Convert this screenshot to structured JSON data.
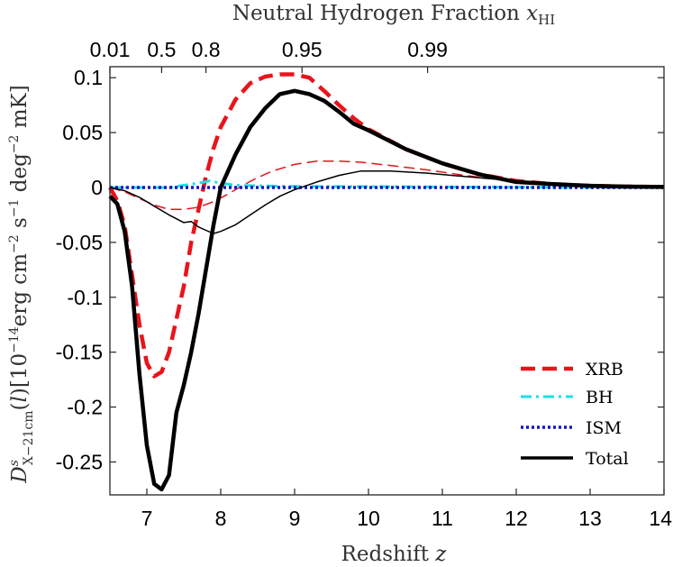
{
  "chart_data": {
    "type": "line",
    "top_axis": {
      "title_text": "Neutral Hydrogen Fraction ",
      "title_math": "x",
      "title_sub": "HI",
      "ticks": [
        {
          "z": 6.5,
          "label": "0.01"
        },
        {
          "z": 7.2,
          "label": "0.5"
        },
        {
          "z": 7.8,
          "label": "0.8"
        },
        {
          "z": 9.1,
          "label": "0.95"
        },
        {
          "z": 10.8,
          "label": "0.99"
        }
      ]
    },
    "xlabel_text": "Redshift ",
    "xlabel_math": "z",
    "ylabel_text": "D^s_X−21cm(l)[10^−14 erg cm^−2 s^−1 deg^−2 mK]",
    "xlim": [
      6.5,
      14
    ],
    "ylim": [
      -0.28,
      0.11
    ],
    "xticks": [
      7,
      8,
      9,
      10,
      11,
      12,
      13,
      14
    ],
    "xtick_labels": [
      "7",
      "8",
      "9",
      "10",
      "11",
      "12",
      "13",
      "14"
    ],
    "yticks": [
      0.1,
      0.05,
      0,
      -0.05,
      -0.1,
      -0.15,
      -0.2,
      -0.25
    ],
    "ytick_labels": [
      "0.1",
      "0.05",
      "0",
      "-0.05",
      "-0.1",
      "-0.15",
      "-0.2",
      "-0.25"
    ],
    "legend_position": "bottom-right",
    "series": [
      {
        "name": "XRB",
        "color": "#e8141b",
        "dash": "16,8",
        "width": 4.5,
        "x": [
          6.5,
          6.6,
          6.7,
          6.8,
          6.9,
          7.0,
          7.1,
          7.2,
          7.3,
          7.4,
          7.5,
          7.6,
          7.7,
          7.8,
          7.9,
          8.0,
          8.2,
          8.4,
          8.6,
          8.8,
          9.0,
          9.2,
          9.4,
          9.6,
          9.8,
          10.0,
          10.5,
          11.0,
          11.5,
          12.0,
          12.5,
          13.0,
          13.5,
          14.0
        ],
        "y": [
          0.0,
          -0.012,
          -0.035,
          -0.08,
          -0.125,
          -0.16,
          -0.172,
          -0.168,
          -0.15,
          -0.12,
          -0.09,
          -0.05,
          -0.02,
          0.01,
          0.035,
          0.055,
          0.08,
          0.095,
          0.101,
          0.103,
          0.103,
          0.1,
          0.088,
          0.075,
          0.063,
          0.053,
          0.035,
          0.022,
          0.012,
          0.006,
          0.003,
          0.0015,
          0.0008,
          0.0005
        ]
      },
      {
        "name": "",
        "color": "#e8141b",
        "dash": "12,6",
        "width": 1.5,
        "x": [
          6.5,
          6.7,
          6.9,
          7.1,
          7.3,
          7.5,
          7.7,
          7.9,
          8.1,
          8.3,
          8.5,
          8.7,
          9.0,
          9.3,
          9.6,
          9.9,
          10.3,
          10.8,
          11.3,
          11.8,
          12.3,
          13.0,
          14.0
        ],
        "y": [
          0.0,
          -0.004,
          -0.01,
          -0.016,
          -0.02,
          -0.02,
          -0.018,
          -0.013,
          -0.006,
          0.002,
          0.009,
          0.015,
          0.021,
          0.024,
          0.024,
          0.023,
          0.02,
          0.016,
          0.011,
          0.007,
          0.004,
          0.002,
          0.0005
        ]
      },
      {
        "name": "BH",
        "color": "#19e0e8",
        "dash": "12,5,3,5",
        "width": 3,
        "x": [
          6.5,
          7.0,
          7.3,
          7.5,
          7.7,
          7.85,
          8.0,
          8.2,
          8.5,
          9.0,
          10.0,
          11.0,
          12.0,
          13.0,
          14.0
        ],
        "y": [
          0.0,
          0.0,
          0.0,
          0.002,
          0.004,
          0.006,
          0.004,
          0.002,
          0.0015,
          0.001,
          0.0008,
          0.0005,
          0.0003,
          0.0001,
          0.0
        ]
      },
      {
        "name": "ISM",
        "color": "#1414c8",
        "dash": "3,3",
        "width": 3.5,
        "x": [
          6.5,
          7.0,
          8.0,
          9.0,
          10.0,
          11.0,
          12.0,
          13.0,
          14.0
        ],
        "y": [
          0.0,
          0.0,
          0.0,
          0.0,
          0.0,
          0.0,
          0.0,
          0.0,
          0.0
        ]
      },
      {
        "name": "Total",
        "color": "#000000",
        "dash": "",
        "width": 4.5,
        "x": [
          6.5,
          6.6,
          6.7,
          6.8,
          6.9,
          7.0,
          7.1,
          7.2,
          7.3,
          7.4,
          7.5,
          7.6,
          7.7,
          7.8,
          7.9,
          8.0,
          8.2,
          8.4,
          8.6,
          8.8,
          9.0,
          9.2,
          9.4,
          9.6,
          9.8,
          10.0,
          10.5,
          11.0,
          11.5,
          12.0,
          12.5,
          13.0,
          13.5,
          14.0
        ],
        "y": [
          -0.008,
          -0.015,
          -0.04,
          -0.09,
          -0.17,
          -0.235,
          -0.27,
          -0.275,
          -0.262,
          -0.205,
          -0.18,
          -0.15,
          -0.115,
          -0.075,
          -0.035,
          0.0,
          0.03,
          0.055,
          0.072,
          0.085,
          0.088,
          0.085,
          0.079,
          0.069,
          0.058,
          0.052,
          0.035,
          0.022,
          0.012,
          0.005,
          0.003,
          0.0015,
          0.0008,
          0.0005
        ]
      },
      {
        "name": "",
        "color": "#000000",
        "dash": "",
        "width": 1.5,
        "x": [
          6.5,
          6.7,
          6.9,
          7.1,
          7.3,
          7.5,
          7.6,
          7.7,
          7.8,
          7.9,
          8.0,
          8.2,
          8.4,
          8.6,
          8.8,
          9.0,
          9.3,
          9.6,
          9.9,
          10.3,
          10.8,
          11.3,
          11.8,
          12.3,
          13.0,
          14.0
        ],
        "y": [
          0.0,
          -0.003,
          -0.009,
          -0.017,
          -0.025,
          -0.032,
          -0.031,
          -0.036,
          -0.039,
          -0.042,
          -0.04,
          -0.034,
          -0.025,
          -0.016,
          -0.008,
          -0.002,
          0.005,
          0.011,
          0.015,
          0.015,
          0.013,
          0.01,
          0.007,
          0.004,
          0.002,
          0.0005
        ]
      }
    ]
  }
}
